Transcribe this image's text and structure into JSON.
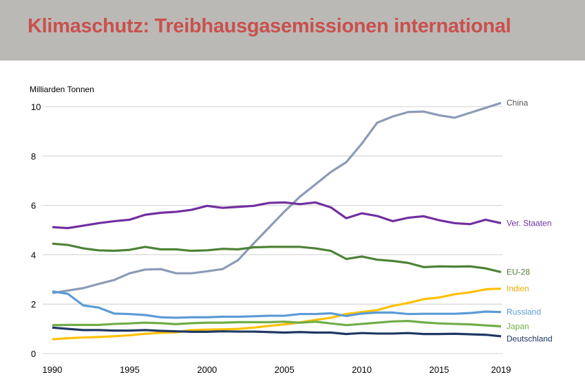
{
  "header": {
    "title": "Klimaschutz: Treibhausgasemissionen international"
  },
  "chart_data": {
    "type": "line",
    "title": "Klimaschutz: Treibhausgasemissionen international",
    "ylabel": "Milliarden Tonnen",
    "xlabel": "",
    "xlim": [
      1990,
      2019
    ],
    "ylim": [
      0,
      10
    ],
    "yticks": [
      0,
      2,
      4,
      6,
      8,
      10
    ],
    "xticks": [
      1990,
      1995,
      2000,
      2005,
      2010,
      2015,
      2019
    ],
    "grid": true,
    "legend": "inline-right",
    "x": [
      1990,
      1991,
      1992,
      1993,
      1994,
      1995,
      1996,
      1997,
      1998,
      1999,
      2000,
      2001,
      2002,
      2003,
      2004,
      2005,
      2006,
      2007,
      2008,
      2009,
      2010,
      2011,
      2012,
      2013,
      2014,
      2015,
      2016,
      2017,
      2018,
      2019
    ],
    "series": [
      {
        "name": "China",
        "color": "#8a9bb5",
        "label_color": "#555555",
        "values": [
          2.45,
          2.55,
          2.65,
          2.82,
          2.98,
          3.25,
          3.4,
          3.42,
          3.25,
          3.25,
          3.33,
          3.42,
          3.78,
          4.45,
          5.1,
          5.75,
          6.35,
          6.85,
          7.35,
          7.75,
          8.5,
          9.35,
          9.6,
          9.78,
          9.8,
          9.65,
          9.55,
          9.75,
          9.95,
          10.15
        ]
      },
      {
        "name": "Ver. Staaten",
        "color": "#7030a0",
        "label_color": "#7030a0",
        "values": [
          5.12,
          5.08,
          5.18,
          5.28,
          5.36,
          5.42,
          5.62,
          5.7,
          5.74,
          5.82,
          5.98,
          5.9,
          5.94,
          5.98,
          6.1,
          6.12,
          6.05,
          6.12,
          5.92,
          5.48,
          5.68,
          5.57,
          5.36,
          5.5,
          5.56,
          5.4,
          5.28,
          5.24,
          5.42,
          5.28
        ]
      },
      {
        "name": "EU-28",
        "color": "#4e8236",
        "label_color": "#4e8236",
        "values": [
          4.45,
          4.4,
          4.26,
          4.18,
          4.16,
          4.2,
          4.32,
          4.22,
          4.22,
          4.16,
          4.18,
          4.24,
          4.22,
          4.3,
          4.32,
          4.32,
          4.32,
          4.26,
          4.16,
          3.83,
          3.93,
          3.8,
          3.75,
          3.67,
          3.5,
          3.53,
          3.52,
          3.53,
          3.45,
          3.3
        ]
      },
      {
        "name": "Indien",
        "color": "#ffc000",
        "label_color": "#e6ad00",
        "values": [
          0.58,
          0.62,
          0.65,
          0.67,
          0.7,
          0.74,
          0.8,
          0.84,
          0.86,
          0.95,
          0.97,
          0.98,
          1.0,
          1.05,
          1.12,
          1.18,
          1.26,
          1.36,
          1.45,
          1.6,
          1.68,
          1.76,
          1.93,
          2.05,
          2.2,
          2.27,
          2.4,
          2.48,
          2.6,
          2.63
        ]
      },
      {
        "name": "Russland",
        "color": "#5b9bd5",
        "label_color": "#5b9bd5",
        "values": [
          2.52,
          2.42,
          1.95,
          1.86,
          1.62,
          1.6,
          1.56,
          1.47,
          1.45,
          1.47,
          1.47,
          1.49,
          1.49,
          1.51,
          1.53,
          1.53,
          1.6,
          1.6,
          1.63,
          1.52,
          1.62,
          1.66,
          1.66,
          1.6,
          1.61,
          1.61,
          1.61,
          1.64,
          1.7,
          1.68
        ]
      },
      {
        "name": "Japan",
        "color": "#70ad47",
        "label_color": "#70ad47",
        "values": [
          1.15,
          1.16,
          1.16,
          1.16,
          1.2,
          1.22,
          1.25,
          1.23,
          1.19,
          1.23,
          1.25,
          1.25,
          1.27,
          1.27,
          1.27,
          1.29,
          1.25,
          1.29,
          1.22,
          1.15,
          1.2,
          1.25,
          1.3,
          1.32,
          1.26,
          1.22,
          1.2,
          1.18,
          1.14,
          1.1
        ]
      },
      {
        "name": "Deutschland",
        "color": "#1f3864",
        "label_color": "#1f3864",
        "values": [
          1.05,
          1.0,
          0.95,
          0.95,
          0.93,
          0.93,
          0.95,
          0.92,
          0.9,
          0.88,
          0.88,
          0.9,
          0.89,
          0.89,
          0.87,
          0.85,
          0.87,
          0.85,
          0.85,
          0.79,
          0.83,
          0.81,
          0.81,
          0.83,
          0.79,
          0.79,
          0.8,
          0.78,
          0.76,
          0.7
        ]
      }
    ]
  }
}
